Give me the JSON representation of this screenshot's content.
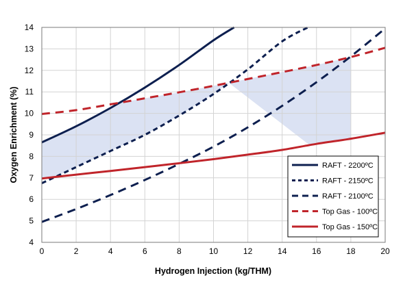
{
  "chart_data": {
    "type": "line",
    "title": "",
    "xlabel": "Hydrogen Injection (kg/THM)",
    "ylabel": "Oxygen Enrichment (%)",
    "xlim": [
      0,
      20
    ],
    "ylim": [
      4,
      14
    ],
    "xticks": [
      "0",
      "2",
      "4",
      "6",
      "8",
      "10",
      "12",
      "14",
      "16",
      "18",
      "20"
    ],
    "yticks": [
      "4",
      "5",
      "6",
      "7",
      "8",
      "9",
      "10",
      "11",
      "12",
      "13",
      "14"
    ],
    "grid": true,
    "legend_position": "bottom-right",
    "shaded_region": {
      "description_from_series": [
        "RAFT - 2200ºC",
        "Top Gas - 100ºC",
        "Top Gas - 150ºC",
        "RAFT - 2150ºC"
      ],
      "color": "#dbe2f3"
    },
    "series": [
      {
        "name": "RAFT - 2200ºC",
        "style": "solid",
        "color": "#0d1f4f",
        "x": [
          0,
          2,
          4,
          6,
          8,
          10,
          11.2
        ],
        "y": [
          8.65,
          9.4,
          10.25,
          11.2,
          12.25,
          13.4,
          14.0
        ]
      },
      {
        "name": "RAFT - 2150ºC",
        "style": "dotted",
        "color": "#0d1f4f",
        "x": [
          0,
          2,
          4,
          6,
          8,
          10,
          12,
          14,
          15.5
        ],
        "y": [
          6.75,
          7.5,
          8.25,
          9.0,
          9.9,
          10.9,
          12.05,
          13.35,
          14.0
        ]
      },
      {
        "name": "RAFT - 2100ºC",
        "style": "dashed",
        "color": "#0d1f4f",
        "x": [
          0,
          2,
          4,
          6,
          8,
          10,
          12,
          14,
          16,
          18,
          20
        ],
        "y": [
          4.95,
          5.55,
          6.2,
          6.9,
          7.65,
          8.45,
          9.35,
          10.35,
          11.45,
          12.65,
          13.95
        ]
      },
      {
        "name": "Top Gas - 100ºC",
        "style": "dashed",
        "color": "#c0242a",
        "x": [
          0,
          2,
          4,
          6,
          8,
          10,
          12,
          14,
          16,
          18,
          20
        ],
        "y": [
          9.97,
          10.15,
          10.42,
          10.7,
          10.98,
          11.28,
          11.6,
          11.92,
          12.25,
          12.62,
          13.05
        ]
      },
      {
        "name": "Top Gas - 150ºC",
        "style": "solid",
        "color": "#c0242a",
        "x": [
          0,
          2,
          4,
          6,
          8,
          10,
          12,
          14,
          16,
          18,
          20
        ],
        "y": [
          6.97,
          7.15,
          7.32,
          7.5,
          7.68,
          7.87,
          8.08,
          8.3,
          8.58,
          8.82,
          9.1
        ]
      }
    ]
  }
}
